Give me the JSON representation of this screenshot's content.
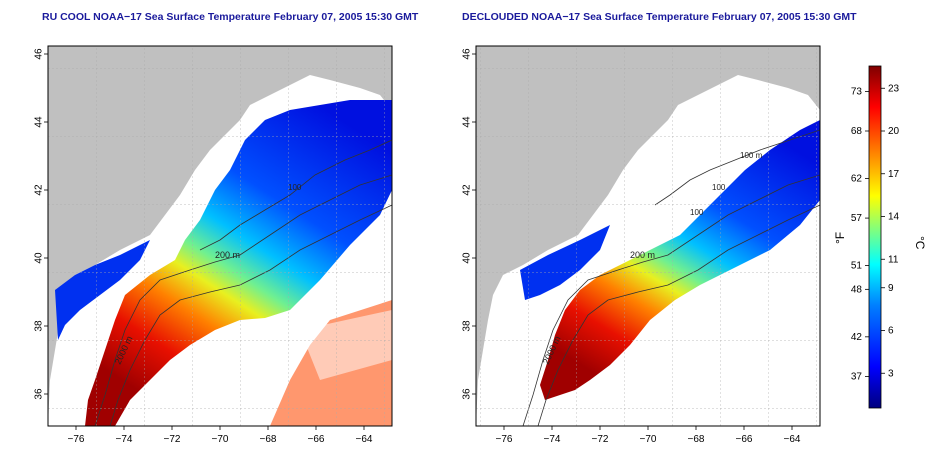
{
  "panels": [
    {
      "title": "RU COOL NOAA−17 Sea Surface Temperature February 07, 2005 15:30 GMT",
      "contour_labels": [
        "200 m",
        "2000 m",
        "100"
      ]
    },
    {
      "title": "DECLOUDED NOAA−17 Sea Surface Temperature February 07, 2005 15:30 GMT",
      "contour_labels": [
        "200 m",
        "2000 m",
        "100 m",
        "100",
        "100"
      ]
    }
  ],
  "axes": {
    "x_ticks": [
      "−76",
      "−74",
      "−72",
      "−70",
      "−68",
      "−66",
      "−64"
    ],
    "y_ticks": [
      "36",
      "38",
      "40",
      "42",
      "44",
      "46"
    ]
  },
  "colorbar": {
    "f_label": "°F",
    "c_label": "°C",
    "f_ticks": [
      "73",
      "68",
      "62",
      "57",
      "51",
      "48",
      "42",
      "37"
    ],
    "c_ticks": [
      "23",
      "20",
      "17",
      "14",
      "11",
      "9",
      "6",
      "3"
    ],
    "f_values": [
      73,
      68,
      62,
      57,
      51,
      48,
      42,
      37
    ],
    "c_values": [
      23,
      20,
      17,
      14,
      11,
      9,
      6,
      3
    ],
    "range_c": [
      0,
      24
    ]
  },
  "colors": {
    "land": "#c0c0c0",
    "no_data": "#ffffff",
    "title": "#1a1a9c",
    "scale": [
      "#00007f",
      "#0000ff",
      "#007fff",
      "#00ffff",
      "#7fff7f",
      "#ffff00",
      "#ff7f00",
      "#ff0000",
      "#7f0000"
    ]
  }
}
